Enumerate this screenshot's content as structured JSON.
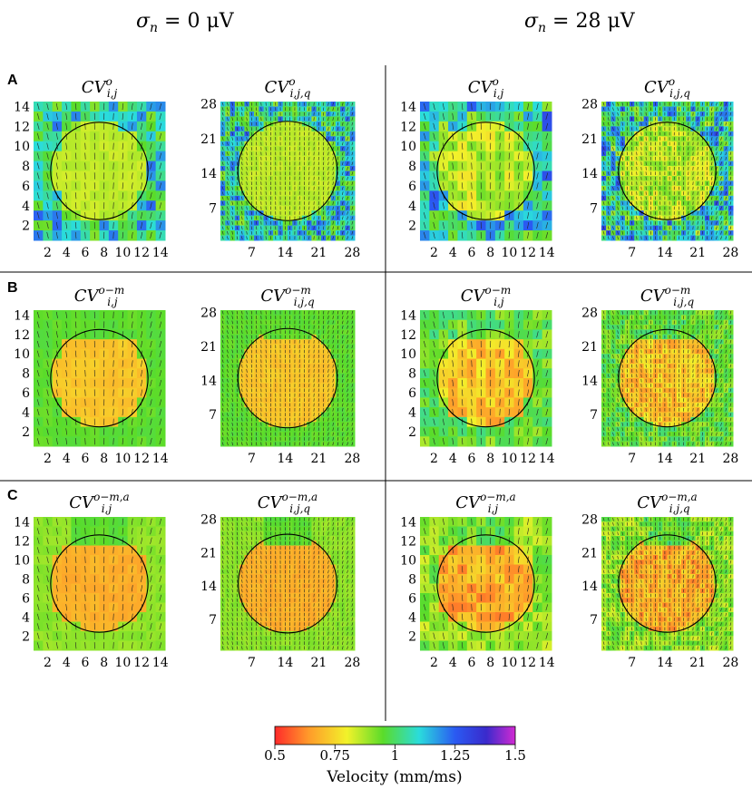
{
  "figure": {
    "column_headers": [
      {
        "sym": "σ",
        "sub": "n",
        "rest": " = 0 μV"
      },
      {
        "sym": "σ",
        "sub": "n",
        "rest": " = 28 μV"
      }
    ],
    "row_labels": [
      "A",
      "B",
      "C"
    ]
  },
  "chart_data": {
    "type": "heatmap",
    "description_free": true,
    "panels": [
      {
        "row": "A",
        "col": 0,
        "title_base": "CV",
        "title_sup": "o",
        "title_sub": "i,j",
        "grid": 14,
        "noise": 0,
        "stage": "o"
      },
      {
        "row": "A",
        "col": 1,
        "title_base": "CV",
        "title_sup": "o",
        "title_sub": "i,j,q",
        "grid": 28,
        "noise": 0,
        "stage": "o"
      },
      {
        "row": "A",
        "col": 2,
        "title_base": "CV",
        "title_sup": "o",
        "title_sub": "i,j",
        "grid": 14,
        "noise": 28,
        "stage": "o"
      },
      {
        "row": "A",
        "col": 3,
        "title_base": "CV",
        "title_sup": "o",
        "title_sub": "i,j,q",
        "grid": 28,
        "noise": 28,
        "stage": "o"
      },
      {
        "row": "B",
        "col": 0,
        "title_base": "CV",
        "title_sup": "o−m",
        "title_sub": "i,j",
        "grid": 14,
        "noise": 0,
        "stage": "om"
      },
      {
        "row": "B",
        "col": 1,
        "title_base": "CV",
        "title_sup": "o−m",
        "title_sub": "i,j,q",
        "grid": 28,
        "noise": 0,
        "stage": "om"
      },
      {
        "row": "B",
        "col": 2,
        "title_base": "CV",
        "title_sup": "o−m",
        "title_sub": "i,j",
        "grid": 14,
        "noise": 28,
        "stage": "om"
      },
      {
        "row": "B",
        "col": 3,
        "title_base": "CV",
        "title_sup": "o−m",
        "title_sub": "i,j,q",
        "grid": 28,
        "noise": 28,
        "stage": "om"
      },
      {
        "row": "C",
        "col": 0,
        "title_base": "CV",
        "title_sup": "o−m,a",
        "title_sub": "i,j",
        "grid": 14,
        "noise": 0,
        "stage": "oma"
      },
      {
        "row": "C",
        "col": 1,
        "title_base": "CV",
        "title_sup": "o−m,a",
        "title_sub": "i,j,q",
        "grid": 28,
        "noise": 0,
        "stage": "oma"
      },
      {
        "row": "C",
        "col": 2,
        "title_base": "CV",
        "title_sup": "o−m,a",
        "title_sub": "i,j",
        "grid": 14,
        "noise": 28,
        "stage": "oma"
      },
      {
        "row": "C",
        "col": 3,
        "title_base": "CV",
        "title_sup": "o−m,a",
        "title_sub": "i,j,q",
        "grid": 28,
        "noise": 28,
        "stage": "oma"
      }
    ],
    "axes": {
      "grid14": {
        "xticks": [
          "2",
          "4",
          "6",
          "8",
          "10",
          "12",
          "14"
        ],
        "yticks": [
          "2",
          "4",
          "6",
          "8",
          "10",
          "12",
          "14"
        ],
        "range": [
          1,
          14
        ]
      },
      "grid28": {
        "xticks": [
          "7",
          "14",
          "21",
          "28"
        ],
        "yticks": [
          "7",
          "14",
          "21",
          "28"
        ],
        "range": [
          1,
          28
        ]
      }
    },
    "circle": {
      "center_frac": [
        0.5,
        0.5
      ],
      "note": "region of slower conduction"
    },
    "colorbar": {
      "label": "Velocity (mm/ms)",
      "ticks": [
        "0.5",
        "0.75",
        "1",
        "1.25",
        "1.5"
      ],
      "range": [
        0.5,
        1.5
      ],
      "colormap": [
        "#ff2a2a",
        "#ff9a2a",
        "#f2f22a",
        "#5adc2a",
        "#2adcdc",
        "#2a5af2",
        "#3a2acc",
        "#d22ad2"
      ]
    },
    "values_inside_circle": {
      "o": 0.85,
      "om": 0.72,
      "oma": 0.68
    },
    "values_outside_circle": {
      "o": 1.0,
      "om": 0.95,
      "oma": 0.9
    }
  }
}
